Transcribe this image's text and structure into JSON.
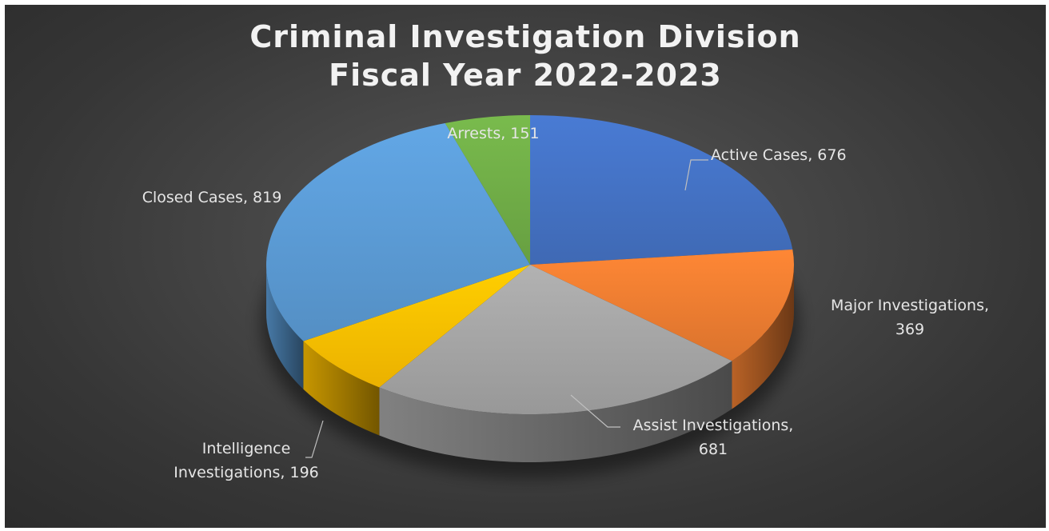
{
  "chart_data": {
    "type": "pie",
    "style": "3d",
    "title_lines": [
      "Criminal Investigation Division",
      "Fiscal Year 2022-2023"
    ],
    "legend": "none",
    "categories": [
      "Active Cases",
      "Major Investigations",
      "Assist Investigations",
      "Intelligence Investigations",
      "Closed Cases",
      "Arrests"
    ],
    "values": [
      676,
      369,
      681,
      196,
      819,
      151
    ],
    "data_labels": [
      [
        "Active Cases, 676"
      ],
      [
        "Major Investigations,",
        "369"
      ],
      [
        "Assist Investigations,",
        "681"
      ],
      [
        "Intelligence",
        "Investigations, 196"
      ],
      [
        "Closed Cases, 819"
      ],
      [
        "Arrests, 151"
      ]
    ],
    "colors": [
      "#4472C4",
      "#ED7D31",
      "#A5A5A5",
      "#FFC000",
      "#5B9BD5",
      "#70AD47"
    ]
  }
}
